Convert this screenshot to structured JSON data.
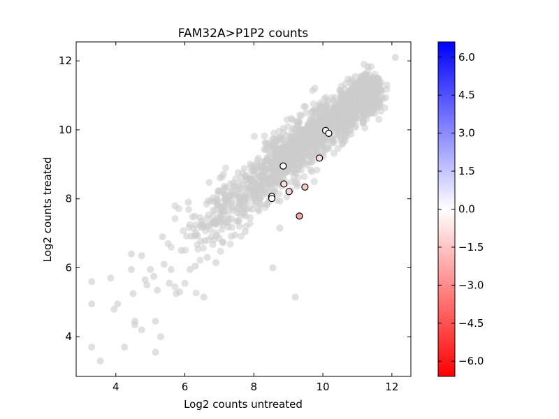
{
  "chart_data": {
    "type": "scatter",
    "title": "FAM32A>P1P2 counts",
    "xlabel": "Log2 counts untreated",
    "ylabel": "Log2 counts treated",
    "xlim": [
      2.85,
      12.55
    ],
    "ylim": [
      2.85,
      12.55
    ],
    "xticks": [
      4,
      6,
      8,
      10,
      12
    ],
    "yticks": [
      4,
      6,
      8,
      10,
      12
    ],
    "grid": false,
    "background_points": {
      "color": "#cccccc",
      "description": "dense cloud of ~thousands of points along x≈y, spreading wider at low counts",
      "cloud_center_line": {
        "x_start": 5.6,
        "y_start": 6.5,
        "x_end": 11.5,
        "y_end": 11.3
      },
      "outliers": [
        {
          "x": 3.3,
          "y": 5.6
        },
        {
          "x": 3.3,
          "y": 4.95
        },
        {
          "x": 3.3,
          "y": 3.7
        },
        {
          "x": 3.55,
          "y": 3.3
        },
        {
          "x": 3.85,
          "y": 5.7
        },
        {
          "x": 3.95,
          "y": 4.8
        },
        {
          "x": 4.05,
          "y": 4.95
        },
        {
          "x": 4.25,
          "y": 3.7
        },
        {
          "x": 4.45,
          "y": 6.4
        },
        {
          "x": 4.45,
          "y": 5.95
        },
        {
          "x": 4.5,
          "y": 5.25
        },
        {
          "x": 4.55,
          "y": 4.45
        },
        {
          "x": 4.55,
          "y": 4.35
        },
        {
          "x": 4.75,
          "y": 4.2
        },
        {
          "x": 4.75,
          "y": 6.35
        },
        {
          "x": 4.85,
          "y": 5.65
        },
        {
          "x": 4.9,
          "y": 5.5
        },
        {
          "x": 5.0,
          "y": 5.95
        },
        {
          "x": 5.1,
          "y": 5.75
        },
        {
          "x": 5.15,
          "y": 4.45
        },
        {
          "x": 5.2,
          "y": 5.35
        },
        {
          "x": 5.3,
          "y": 4.0
        },
        {
          "x": 5.4,
          "y": 6.1
        },
        {
          "x": 5.55,
          "y": 5.55
        },
        {
          "x": 5.6,
          "y": 5.95
        },
        {
          "x": 5.75,
          "y": 5.25
        },
        {
          "x": 5.85,
          "y": 5.3
        },
        {
          "x": 5.9,
          "y": 6.5
        },
        {
          "x": 6.0,
          "y": 5.55
        },
        {
          "x": 6.15,
          "y": 5.95
        },
        {
          "x": 6.3,
          "y": 6.05
        },
        {
          "x": 6.55,
          "y": 5.15
        },
        {
          "x": 6.65,
          "y": 6.3
        },
        {
          "x": 6.9,
          "y": 6.15
        },
        {
          "x": 7.1,
          "y": 6.75
        },
        {
          "x": 7.45,
          "y": 6.95
        },
        {
          "x": 7.75,
          "y": 7.05
        },
        {
          "x": 8.55,
          "y": 6.0
        },
        {
          "x": 8.75,
          "y": 7.15
        },
        {
          "x": 9.2,
          "y": 5.15
        },
        {
          "x": 12.1,
          "y": 12.1
        },
        {
          "x": 5.15,
          "y": 3.55
        },
        {
          "x": 5.35,
          "y": 6.9
        },
        {
          "x": 6.1,
          "y": 7.9
        }
      ]
    },
    "highlighted_points": [
      {
        "x": 10.08,
        "y": 9.98,
        "color": "#ffffff"
      },
      {
        "x": 10.17,
        "y": 9.9,
        "color": "#ffffff"
      },
      {
        "x": 8.85,
        "y": 8.95,
        "color": "#ffffff"
      },
      {
        "x": 9.9,
        "y": 9.18,
        "color": "#fee2e2"
      },
      {
        "x": 8.87,
        "y": 8.43,
        "color": "#fee2e2"
      },
      {
        "x": 9.02,
        "y": 8.21,
        "color": "#fdd5d5"
      },
      {
        "x": 9.48,
        "y": 8.34,
        "color": "#fcc8c8"
      },
      {
        "x": 8.52,
        "y": 8.07,
        "color": "#ffffff"
      },
      {
        "x": 8.52,
        "y": 8.01,
        "color": "#ffffff"
      },
      {
        "x": 9.32,
        "y": 7.5,
        "color": "#f8a8a8"
      }
    ],
    "colorbar": {
      "range": [
        -6.6,
        6.6
      ],
      "colors": {
        "low": "#ff0000",
        "mid": "#ffffff",
        "high": "#0000ff"
      },
      "ticks": [
        "6.0",
        "4.5",
        "3.0",
        "1.5",
        "0.0",
        "−1.5",
        "−3.0",
        "−4.5",
        "−6.0"
      ],
      "tick_values": [
        6.0,
        4.5,
        3.0,
        1.5,
        0.0,
        -1.5,
        -3.0,
        -4.5,
        -6.0
      ]
    }
  }
}
